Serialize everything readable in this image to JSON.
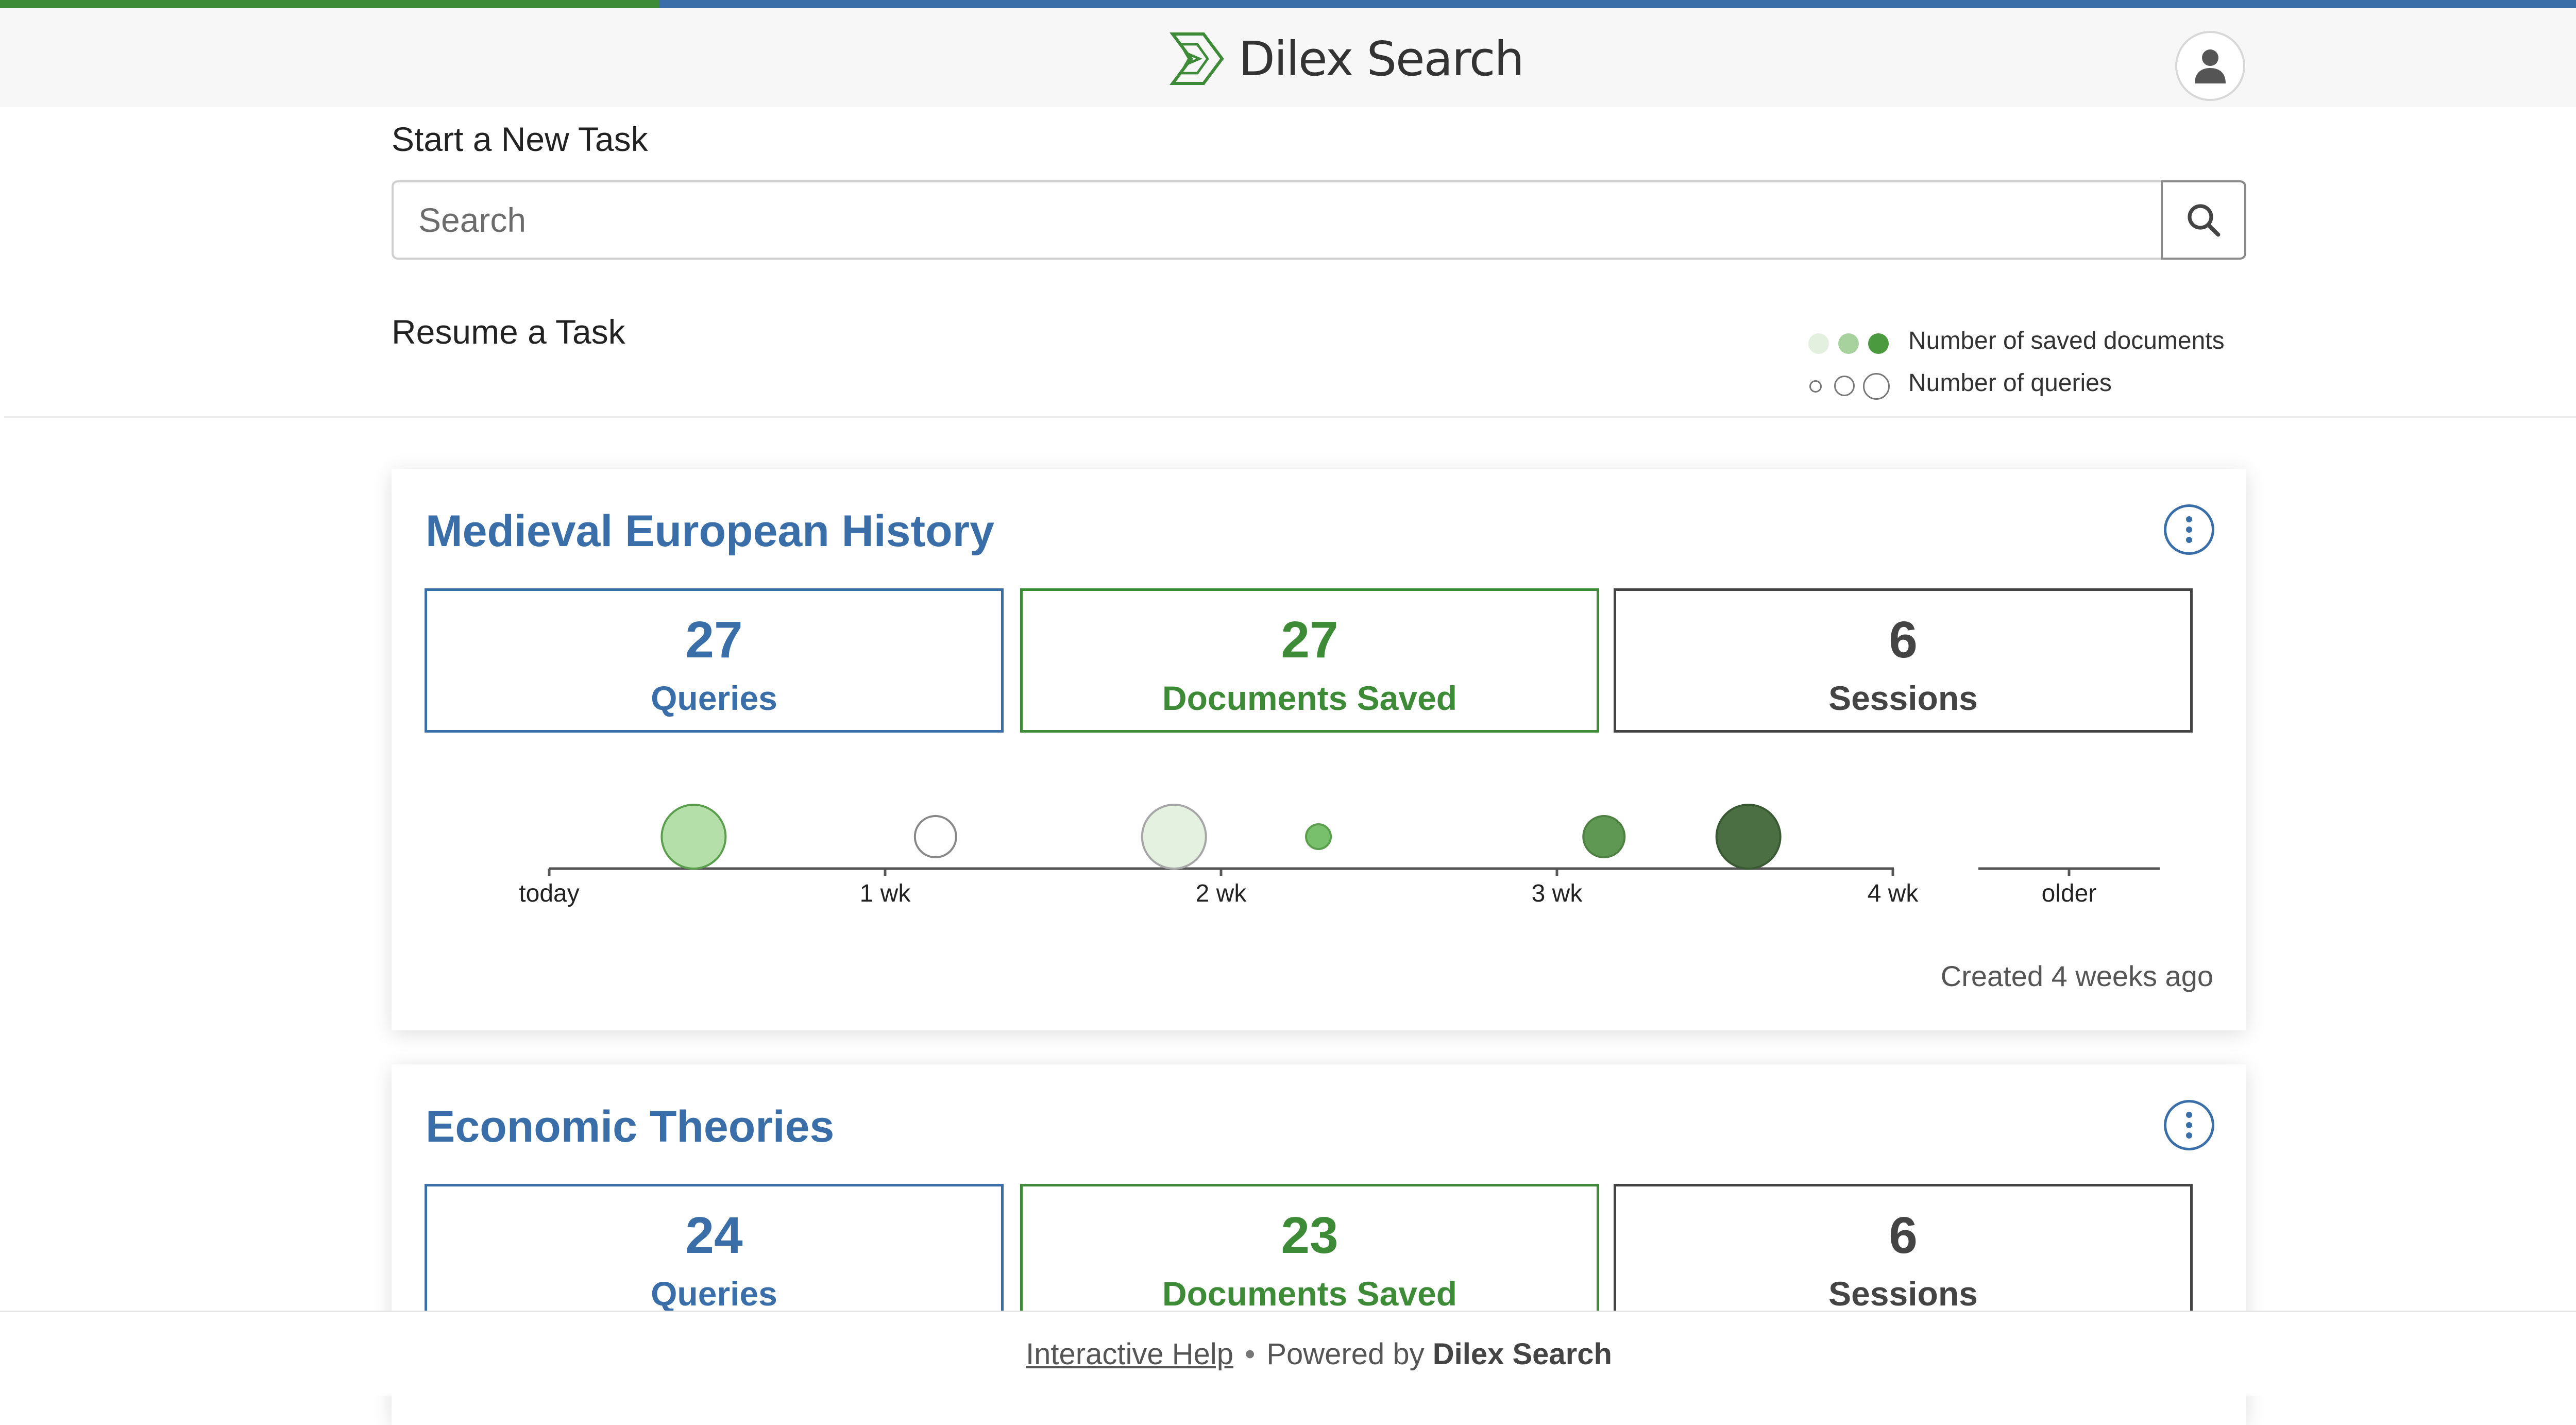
{
  "app": {
    "name": "Dilex Search",
    "colors": {
      "accent_blue": "#3a6ea8",
      "accent_green": "#3d8b37",
      "sessions_gray": "#444444"
    }
  },
  "new_task": {
    "label": "Start a New Task",
    "search_placeholder": "Search"
  },
  "resume": {
    "label": "Resume a Task"
  },
  "legend": {
    "docs_label": "Number of saved documents",
    "queries_label": "Number of queries"
  },
  "timeline_labels": [
    "today",
    "1 wk",
    "2 wk",
    "3 wk",
    "4 wk",
    "older"
  ],
  "tasks": [
    {
      "title": "Medieval European History",
      "queries": "27",
      "queries_label": "Queries",
      "docs": "27",
      "docs_label": "Documents Saved",
      "sessions": "6",
      "sessions_label": "Sessions",
      "created": "Created 4 weeks ago",
      "sessions_timeline": [
        {
          "weeks_ago": 0.43,
          "size": "large",
          "fill": "#b5dfa8",
          "stroke": "#5a9e4e"
        },
        {
          "weeks_ago": 1.15,
          "size": "medium",
          "fill": "#ffffff",
          "stroke": "#888888"
        },
        {
          "weeks_ago": 1.86,
          "size": "large",
          "fill": "#e4f1e0",
          "stroke": "#a6a6a6"
        },
        {
          "weeks_ago": 2.29,
          "size": "small",
          "fill": "#78c06b",
          "stroke": "#5a9e4e"
        },
        {
          "weeks_ago": 3.14,
          "size": "medium",
          "fill": "#5f9852",
          "stroke": "#4f8143"
        },
        {
          "weeks_ago": 3.57,
          "size": "large",
          "fill": "#4b6f43",
          "stroke": "#3a5a33"
        }
      ]
    },
    {
      "title": "Economic Theories",
      "queries": "24",
      "queries_label": "Queries",
      "docs": "23",
      "docs_label": "Documents Saved",
      "sessions": "6",
      "sessions_label": "Sessions"
    }
  ],
  "footer": {
    "help": "Interactive Help",
    "separator": "•",
    "powered": "Powered by",
    "brand": "Dilex Search"
  }
}
